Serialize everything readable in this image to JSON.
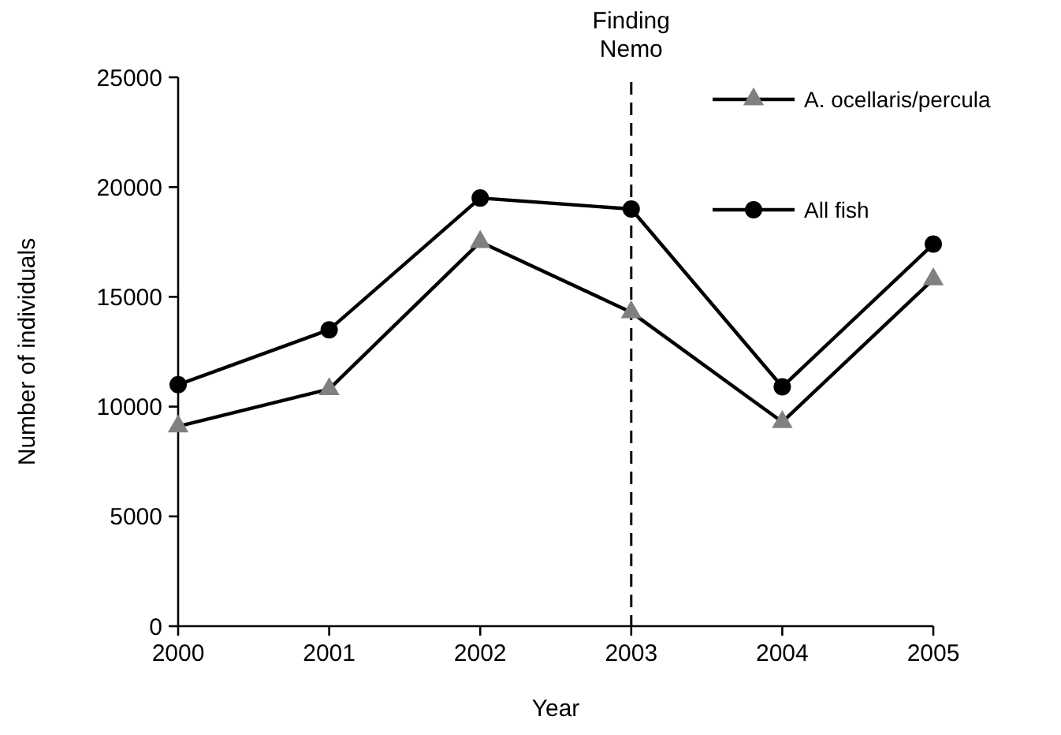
{
  "chart_data": {
    "type": "line",
    "xlabel": "Year",
    "ylabel": "Number of individuals",
    "x": [
      2000,
      2001,
      2002,
      2003,
      2004,
      2005
    ],
    "xlim": [
      2000,
      2005
    ],
    "xticks": [
      2000,
      2001,
      2002,
      2003,
      2004,
      2005
    ],
    "ylim": [
      0,
      25000
    ],
    "yticks": [
      0,
      5000,
      10000,
      15000,
      20000,
      25000
    ],
    "grid": false,
    "legend": "top right",
    "line_style": "solid",
    "series": [
      {
        "name": "A. ocellaris/percula",
        "color": "#808080",
        "marker": "triangle",
        "values": [
          9100,
          10800,
          17500,
          14300,
          9300,
          15800
        ]
      },
      {
        "name": "All fish",
        "color": "#000000",
        "marker": "circle",
        "values": [
          11000,
          13500,
          19500,
          19000,
          10900,
          17400
        ]
      }
    ],
    "ref_lines": [
      {
        "axis": "x",
        "value": 2003,
        "label": "Finding Nemo",
        "line_style": "dashed",
        "color": "#000000"
      }
    ]
  }
}
